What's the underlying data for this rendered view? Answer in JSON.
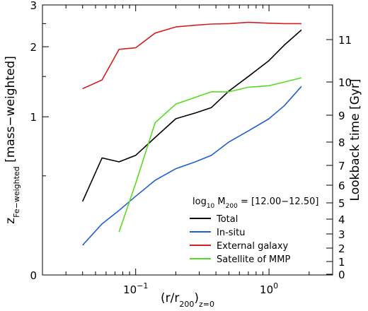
{
  "chart_data": {
    "type": "line",
    "xscale": "log",
    "xlim": [
      0.02,
      3.0
    ],
    "xticks": [
      {
        "value": 0.1,
        "base": "10",
        "exp": "−1"
      },
      {
        "value": 1.0,
        "base": "10",
        "exp": "0"
      }
    ],
    "xlabel": {
      "pre": "(r/r",
      "sub1": "200",
      "mid": ")",
      "sub2": "z=0"
    },
    "yscale": "redshift",
    "ylim_left": [
      0,
      3
    ],
    "yticks_left": [
      {
        "value": 0,
        "label": "0"
      },
      {
        "value": 1,
        "label": "1"
      },
      {
        "value": 2,
        "label": "2"
      },
      {
        "value": 3,
        "label": "3"
      }
    ],
    "ylabel_left": {
      "pre": "z",
      "sub": "Fe−weighted",
      "post": " [mass−weighted]"
    },
    "yticks_right": [
      "0",
      "1",
      "2",
      "3",
      "4",
      "5",
      "6",
      "7",
      "8",
      "9",
      "10",
      "11"
    ],
    "ylabel_right": "Lookback time [Gyr]",
    "annotation": {
      "pre": "log",
      "sub": "10",
      "mid": " M",
      "sub2": "200",
      "post": " = [12.00−12.50]"
    },
    "legend_position": "lower-right",
    "series": [
      {
        "name": "Total",
        "color": "#000000",
        "x": [
          0.04,
          0.056,
          0.075,
          0.1,
          0.14,
          0.2,
          0.28,
          0.37,
          0.5,
          0.7,
          1.0,
          1.3,
          1.75
        ],
        "y": [
          0.34,
          0.63,
          0.6,
          0.65,
          0.8,
          0.98,
          1.04,
          1.1,
          1.3,
          1.5,
          1.75,
          2.03,
          2.35
        ]
      },
      {
        "name": "In-situ",
        "color": "#1f5fd0",
        "x": [
          0.04,
          0.056,
          0.075,
          0.1,
          0.14,
          0.2,
          0.28,
          0.37,
          0.5,
          0.7,
          1.0,
          1.3,
          1.75
        ],
        "y": [
          0.12,
          0.22,
          0.29,
          0.37,
          0.47,
          0.55,
          0.6,
          0.65,
          0.76,
          0.86,
          0.98,
          1.12,
          1.36
        ]
      },
      {
        "name": "External galaxy",
        "color": "#d42020",
        "x": [
          0.04,
          0.056,
          0.075,
          0.1,
          0.14,
          0.2,
          0.28,
          0.37,
          0.5,
          0.7,
          1.0,
          1.3,
          1.75
        ],
        "y": [
          1.33,
          1.45,
          1.95,
          1.98,
          2.28,
          2.42,
          2.46,
          2.49,
          2.5,
          2.53,
          2.51,
          2.5,
          2.5
        ]
      },
      {
        "name": "Satellite of MMP",
        "color": "#55dd22",
        "x": [
          0.075,
          0.1,
          0.14,
          0.2,
          0.28,
          0.37,
          0.5,
          0.7,
          1.0,
          1.3,
          1.75
        ],
        "y": [
          0.18,
          0.45,
          0.94,
          1.14,
          1.22,
          1.29,
          1.29,
          1.35,
          1.37,
          1.42,
          1.48
        ]
      }
    ]
  }
}
